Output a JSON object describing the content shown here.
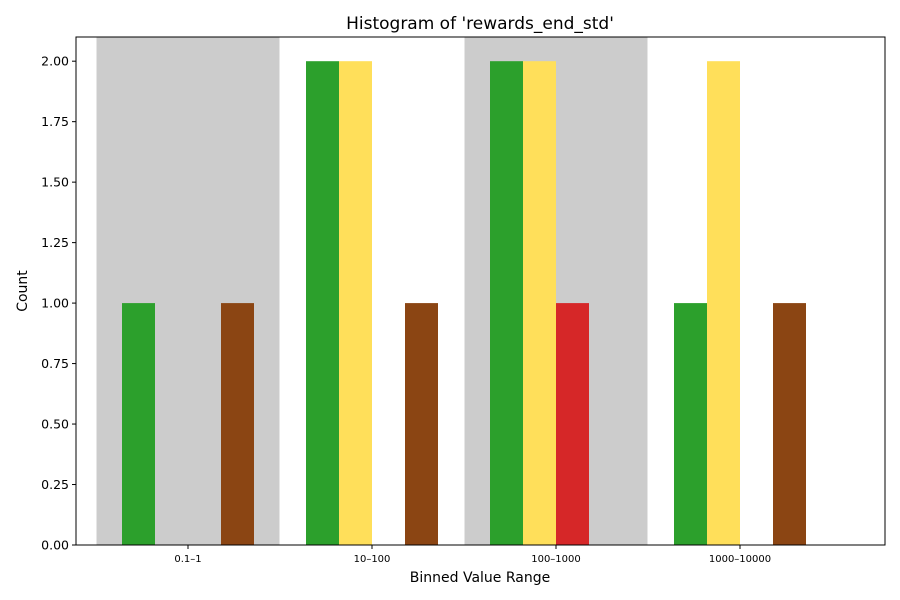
{
  "chart_data": {
    "type": "bar",
    "title": "Histogram of 'rewards_end_std'",
    "xlabel": "Binned Value Range",
    "ylabel": "Count",
    "categories": [
      "0.1–1",
      "10–100",
      "100–1000",
      "1000–10000"
    ],
    "ylim": [
      0,
      2.1
    ],
    "yticks": [
      "0.00",
      "0.25",
      "0.50",
      "0.75",
      "1.00",
      "1.25",
      "1.50",
      "1.75",
      "2.00"
    ],
    "shaded_categories": [
      0,
      2
    ],
    "shade_color": "#cccccc",
    "grid": false,
    "series": [
      {
        "color": "#2ca02c",
        "values": [
          1,
          2,
          2,
          1
        ]
      },
      {
        "color": "#ffdf5a",
        "values": [
          0,
          2,
          2,
          2
        ]
      },
      {
        "color": "#d62728",
        "values": [
          0,
          0,
          1,
          0
        ]
      },
      {
        "color": "#8b4513",
        "values": [
          1,
          1,
          0,
          1
        ]
      }
    ]
  }
}
